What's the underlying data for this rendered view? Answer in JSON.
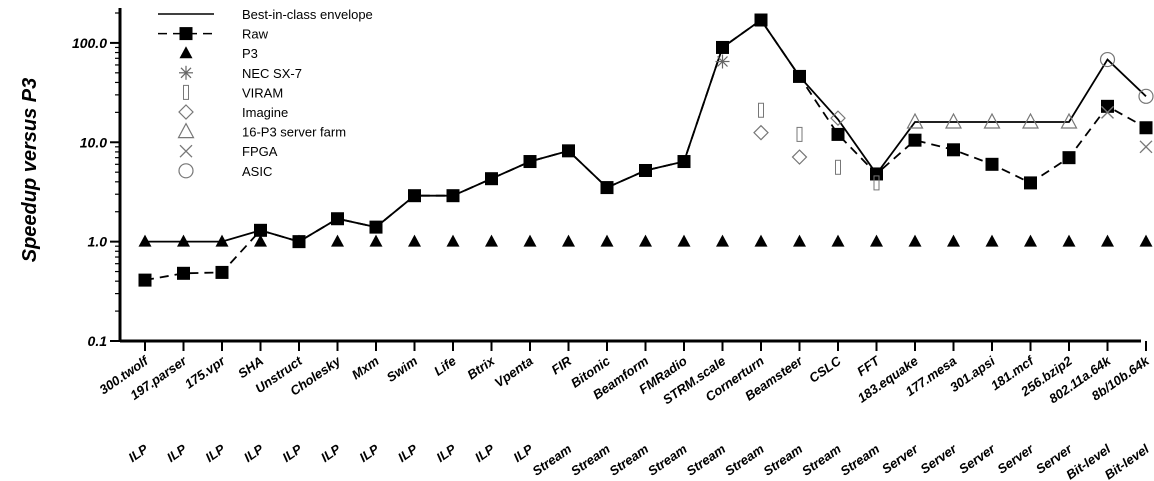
{
  "chart_data": {
    "type": "line",
    "title": "",
    "ylabel": "Speedup versus P3",
    "xlabel": "",
    "yscale": "log",
    "ylim": [
      0.1,
      200
    ],
    "yticks": [
      0.1,
      1.0,
      10.0,
      100.0
    ],
    "ytick_labels": [
      "0.1",
      "1.0",
      "10.0",
      "100.0"
    ],
    "grid": false,
    "legend_position": "top-left",
    "categories": [
      "300.twolf",
      "197.parser",
      "175.vpr",
      "SHA",
      "Unstruct",
      "Cholesky",
      "Mxm",
      "Swim",
      "Life",
      "Btrix",
      "Vpenta",
      "FIR",
      "Bitonic",
      "Beamform",
      "FMRadio",
      "STRM.scale",
      "Cornerturn",
      "Beamsteer",
      "CSLC",
      "FFT",
      "183.equake",
      "177.mesa",
      "301.apsi",
      "181.mcf",
      "256.bzip2",
      "802.11a.64k",
      "8b/10b.64k"
    ],
    "groups": [
      "ILP",
      "ILP",
      "ILP",
      "ILP",
      "ILP",
      "ILP",
      "ILP",
      "ILP",
      "ILP",
      "ILP",
      "ILP",
      "Stream",
      "Stream",
      "Stream",
      "Stream",
      "Stream",
      "Stream",
      "Stream",
      "Stream",
      "Stream",
      "Server",
      "Server",
      "Server",
      "Server",
      "Server",
      "Bit-level",
      "Bit-level"
    ],
    "series": [
      {
        "name": "Best-in-class envelope",
        "style": "solid-line",
        "values": [
          1.0,
          1.0,
          1.0,
          1.3,
          1.0,
          1.7,
          1.4,
          2.9,
          2.9,
          4.3,
          6.4,
          8.2,
          3.5,
          5.2,
          6.4,
          90,
          170,
          46,
          17,
          4.8,
          16,
          16,
          16,
          16,
          16,
          68,
          29
        ]
      },
      {
        "name": "Raw",
        "style": "dashed-line-square",
        "values": [
          0.41,
          0.48,
          0.49,
          1.3,
          1.0,
          1.7,
          1.4,
          2.9,
          2.9,
          4.3,
          6.4,
          8.2,
          3.5,
          5.2,
          6.4,
          90,
          170,
          46,
          12,
          4.8,
          10.5,
          8.4,
          6.0,
          3.9,
          7.0,
          23,
          14
        ]
      },
      {
        "name": "P3",
        "style": "filled-triangle",
        "values": [
          1.0,
          1.0,
          1.0,
          1.0,
          1.0,
          1.0,
          1.0,
          1.0,
          1.0,
          1.0,
          1.0,
          1.0,
          1.0,
          1.0,
          1.0,
          1.0,
          1.0,
          1.0,
          1.0,
          1.0,
          1.0,
          1.0,
          1.0,
          1.0,
          1.0,
          1.0,
          1.0
        ]
      },
      {
        "name": "NEC SX-7",
        "style": "asterisk",
        "values": [
          null,
          null,
          null,
          null,
          null,
          null,
          null,
          null,
          null,
          null,
          null,
          null,
          null,
          null,
          null,
          65,
          null,
          null,
          null,
          null,
          null,
          null,
          null,
          null,
          null,
          null,
          null
        ]
      },
      {
        "name": "VIRAM",
        "style": "thin-rect",
        "values": [
          null,
          null,
          null,
          null,
          null,
          null,
          null,
          null,
          null,
          null,
          null,
          null,
          null,
          null,
          null,
          null,
          21,
          12,
          5.6,
          3.9,
          null,
          null,
          null,
          null,
          null,
          null,
          null
        ]
      },
      {
        "name": "Imagine",
        "style": "open-diamond",
        "values": [
          null,
          null,
          null,
          null,
          null,
          null,
          null,
          null,
          null,
          null,
          null,
          null,
          null,
          null,
          null,
          null,
          12.5,
          7.1,
          17.5,
          null,
          null,
          null,
          null,
          null,
          null,
          null,
          null
        ]
      },
      {
        "name": "16-P3 server farm",
        "style": "open-triangle",
        "values": [
          null,
          null,
          null,
          null,
          null,
          null,
          null,
          null,
          null,
          null,
          null,
          null,
          null,
          null,
          null,
          null,
          null,
          null,
          null,
          null,
          16,
          16,
          16,
          16,
          16,
          null,
          null
        ]
      },
      {
        "name": "FPGA",
        "style": "x-cross",
        "values": [
          null,
          null,
          null,
          null,
          null,
          null,
          null,
          null,
          null,
          null,
          null,
          null,
          null,
          null,
          null,
          null,
          null,
          null,
          null,
          null,
          null,
          null,
          null,
          null,
          null,
          20,
          9.0
        ]
      },
      {
        "name": "ASIC",
        "style": "open-circle",
        "values": [
          null,
          null,
          null,
          null,
          null,
          null,
          null,
          null,
          null,
          null,
          null,
          null,
          null,
          null,
          null,
          null,
          null,
          null,
          null,
          null,
          null,
          null,
          null,
          null,
          null,
          68,
          29
        ]
      }
    ]
  }
}
